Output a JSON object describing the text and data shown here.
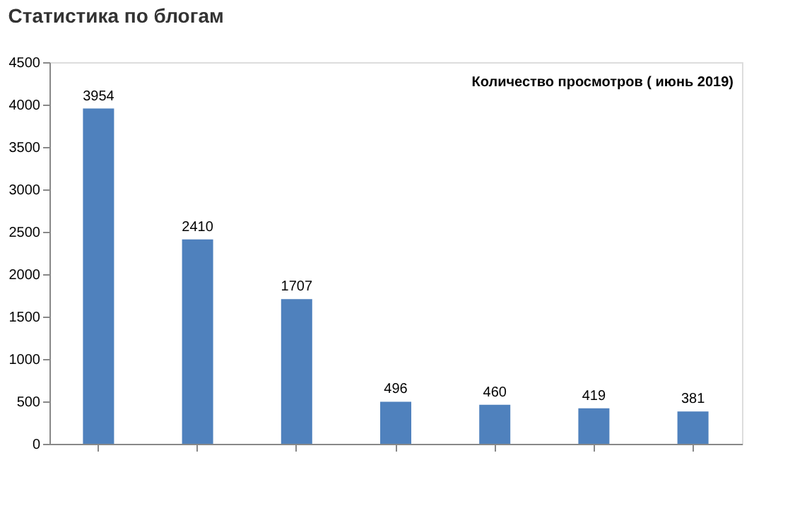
{
  "chart_data": {
    "type": "bar",
    "title": "Статистика по блогам",
    "subtitle": "Количество просмотров ( июнь 2019)",
    "categories": [
      null,
      null,
      null,
      null,
      null,
      null,
      null
    ],
    "values": [
      3954,
      2410,
      1707,
      496,
      460,
      419,
      381
    ],
    "color": "#4f81bd",
    "ylim": [
      0,
      4500
    ],
    "yticks": [
      0,
      500,
      1000,
      1500,
      2000,
      2500,
      3000,
      3500,
      4000,
      4500
    ],
    "grid": false,
    "data_labels": true
  }
}
